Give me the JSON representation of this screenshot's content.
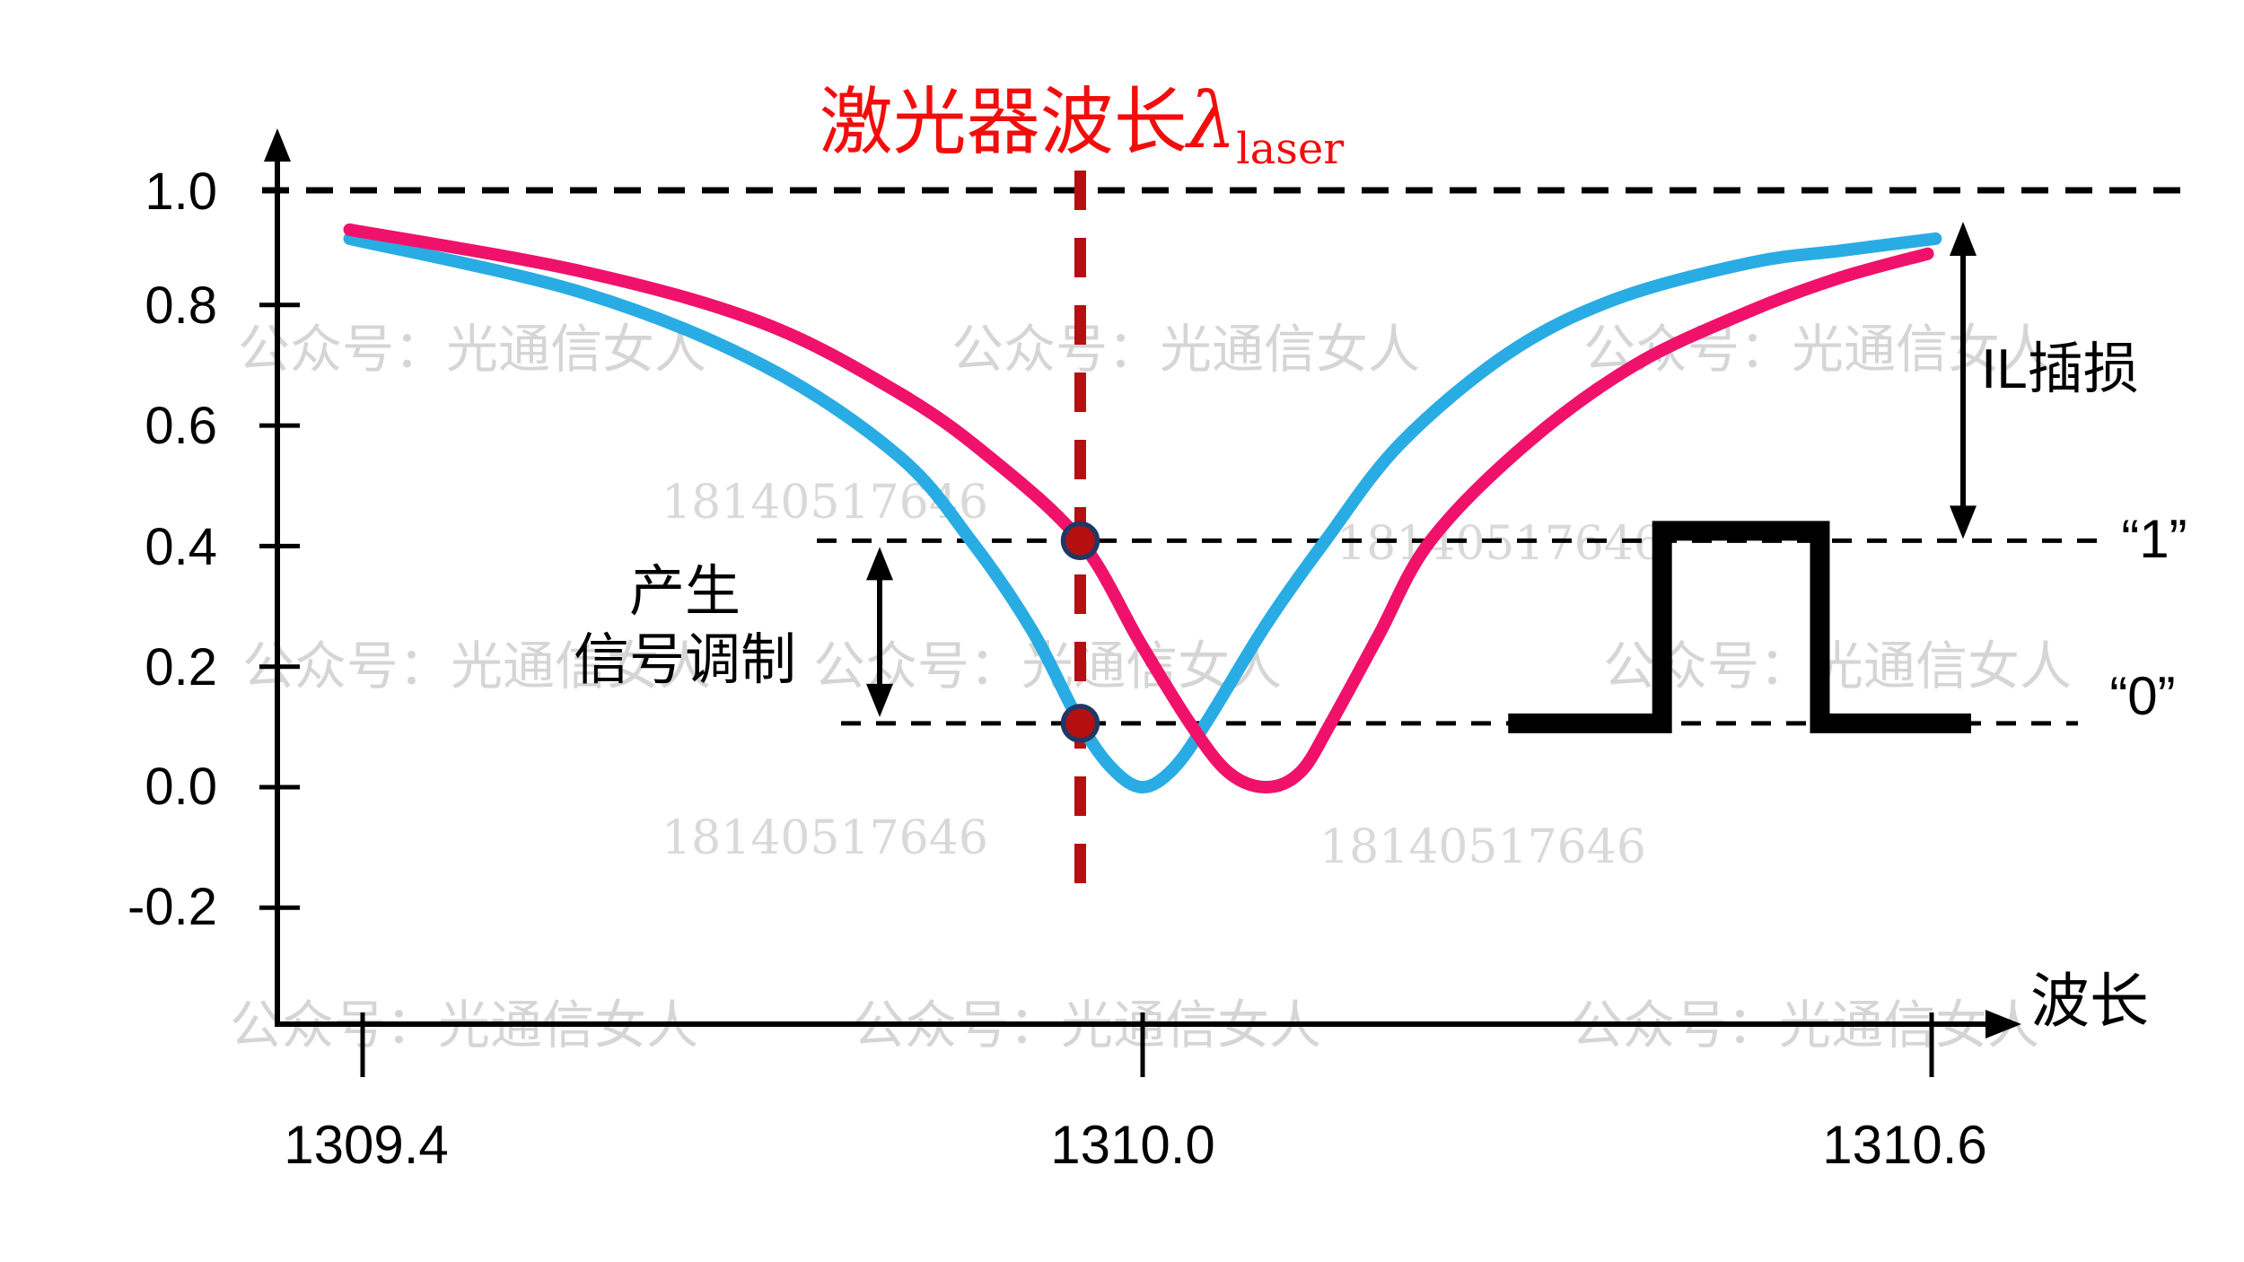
{
  "title": {
    "main": "激光器波长",
    "lambda": "λ",
    "sub": "laser"
  },
  "axes": {
    "x": {
      "title": "波长",
      "tick_labels": [
        "1309.4",
        "1310.0",
        "1310.6"
      ]
    },
    "y": {
      "tick_labels": [
        "1.0",
        "0.8",
        "0.6",
        "0.4",
        "0.2",
        "0.0",
        "-0.2"
      ]
    }
  },
  "levels": {
    "one_label": "“1”",
    "zero_label": "“0”"
  },
  "annotations": {
    "modulation_line1": "产生",
    "modulation_line2": "信号调制",
    "insertion_loss": "IL插损"
  },
  "watermarks": {
    "brand": "公众号：光通信女人",
    "number": "18140517646"
  },
  "colors": {
    "blue_curve": "#29ace3",
    "pink_curve": "#f0116b",
    "laser_red": "#b50f11",
    "dot_outline": "#1f3864",
    "title_red": "#f20d0d",
    "axis_black": "#000000",
    "watermark_gray": "#d5d5d5"
  },
  "chart_data": {
    "type": "line",
    "title": "激光器波长λlaser",
    "xlabel": "波长",
    "x_ticks": [
      1309.4,
      1310.0,
      1310.6
    ],
    "y_ticks": [
      1.0,
      0.8,
      0.6,
      0.4,
      0.2,
      0.0,
      -0.2
    ],
    "ylim": [
      -0.2,
      1.05
    ],
    "grid": false,
    "legend": false,
    "laser_wavelength": 1309.952,
    "levels": {
      "one": 0.409,
      "zero": 0.106,
      "reference_top": 1.0
    },
    "series": [
      {
        "name": "blue_curve",
        "color": "#29ace3",
        "points": [
          [
            1309.39,
            0.91
          ],
          [
            1309.57,
            0.82
          ],
          [
            1309.708,
            0.7
          ],
          [
            1309.812,
            0.55
          ],
          [
            1309.868,
            0.409
          ],
          [
            1309.915,
            0.26
          ],
          [
            1309.952,
            0.106
          ],
          [
            1309.977,
            0.03
          ],
          [
            1310.0,
            0.0
          ],
          [
            1310.023,
            0.03
          ],
          [
            1310.048,
            0.106
          ],
          [
            1310.094,
            0.27
          ],
          [
            1310.139,
            0.409
          ],
          [
            1310.196,
            0.57
          ],
          [
            1310.278,
            0.72
          ],
          [
            1310.36,
            0.81
          ],
          [
            1310.462,
            0.87
          ],
          [
            1310.53,
            0.89
          ],
          [
            1310.603,
            0.91
          ]
        ]
      },
      {
        "name": "pink_curve",
        "color": "#f0116b",
        "points": [
          [
            1309.39,
            0.925
          ],
          [
            1309.57,
            0.855
          ],
          [
            1309.708,
            0.77
          ],
          [
            1309.812,
            0.655
          ],
          [
            1309.881,
            0.55
          ],
          [
            1309.952,
            0.409
          ],
          [
            1309.998,
            0.24
          ],
          [
            1310.036,
            0.106
          ],
          [
            1310.065,
            0.025
          ],
          [
            1310.094,
            0.0
          ],
          [
            1310.12,
            0.025
          ],
          [
            1310.143,
            0.106
          ],
          [
            1310.179,
            0.25
          ],
          [
            1310.219,
            0.409
          ],
          [
            1310.292,
            0.57
          ],
          [
            1310.374,
            0.7
          ],
          [
            1310.462,
            0.79
          ],
          [
            1310.53,
            0.845
          ],
          [
            1310.597,
            0.885
          ]
        ]
      }
    ],
    "markers": [
      {
        "x": 1309.952,
        "y": 0.409,
        "on": "pink_curve"
      },
      {
        "x": 1309.952,
        "y": 0.106,
        "on": "blue_curve"
      }
    ],
    "pulse_inset": {
      "low_level": 0.106,
      "high_level": 0.409,
      "x_start": 1310.278,
      "rise_x": 1310.395,
      "fall_x": 1310.515,
      "x_end": 1310.63
    }
  }
}
